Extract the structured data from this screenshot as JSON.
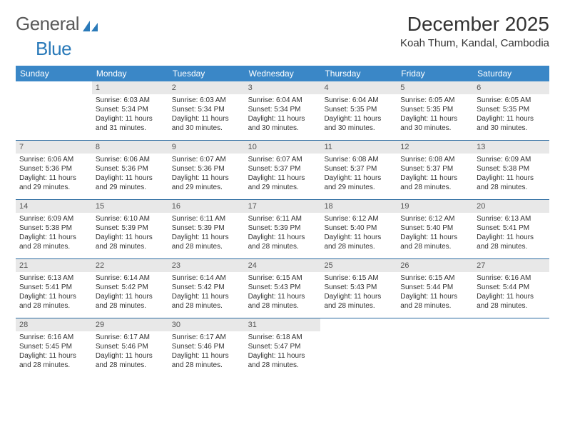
{
  "brand": {
    "name_a": "General",
    "name_b": "Blue"
  },
  "title": "December 2025",
  "location": "Koah Thum, Kandal, Cambodia",
  "colors": {
    "header_bg": "#3a87c7",
    "header_text": "#ffffff",
    "daynum_bg": "#e8e8e8",
    "week_divider": "#2a6aa0",
    "text": "#333333",
    "logo_gray": "#5a5a5a",
    "logo_blue": "#2a7ab9"
  },
  "day_names": [
    "Sunday",
    "Monday",
    "Tuesday",
    "Wednesday",
    "Thursday",
    "Friday",
    "Saturday"
  ],
  "weeks": [
    [
      {
        "n": "",
        "sr": "",
        "ss": "",
        "dl": ""
      },
      {
        "n": "1",
        "sr": "Sunrise: 6:03 AM",
        "ss": "Sunset: 5:34 PM",
        "dl": "Daylight: 11 hours and 31 minutes."
      },
      {
        "n": "2",
        "sr": "Sunrise: 6:03 AM",
        "ss": "Sunset: 5:34 PM",
        "dl": "Daylight: 11 hours and 30 minutes."
      },
      {
        "n": "3",
        "sr": "Sunrise: 6:04 AM",
        "ss": "Sunset: 5:34 PM",
        "dl": "Daylight: 11 hours and 30 minutes."
      },
      {
        "n": "4",
        "sr": "Sunrise: 6:04 AM",
        "ss": "Sunset: 5:35 PM",
        "dl": "Daylight: 11 hours and 30 minutes."
      },
      {
        "n": "5",
        "sr": "Sunrise: 6:05 AM",
        "ss": "Sunset: 5:35 PM",
        "dl": "Daylight: 11 hours and 30 minutes."
      },
      {
        "n": "6",
        "sr": "Sunrise: 6:05 AM",
        "ss": "Sunset: 5:35 PM",
        "dl": "Daylight: 11 hours and 30 minutes."
      }
    ],
    [
      {
        "n": "7",
        "sr": "Sunrise: 6:06 AM",
        "ss": "Sunset: 5:36 PM",
        "dl": "Daylight: 11 hours and 29 minutes."
      },
      {
        "n": "8",
        "sr": "Sunrise: 6:06 AM",
        "ss": "Sunset: 5:36 PM",
        "dl": "Daylight: 11 hours and 29 minutes."
      },
      {
        "n": "9",
        "sr": "Sunrise: 6:07 AM",
        "ss": "Sunset: 5:36 PM",
        "dl": "Daylight: 11 hours and 29 minutes."
      },
      {
        "n": "10",
        "sr": "Sunrise: 6:07 AM",
        "ss": "Sunset: 5:37 PM",
        "dl": "Daylight: 11 hours and 29 minutes."
      },
      {
        "n": "11",
        "sr": "Sunrise: 6:08 AM",
        "ss": "Sunset: 5:37 PM",
        "dl": "Daylight: 11 hours and 29 minutes."
      },
      {
        "n": "12",
        "sr": "Sunrise: 6:08 AM",
        "ss": "Sunset: 5:37 PM",
        "dl": "Daylight: 11 hours and 28 minutes."
      },
      {
        "n": "13",
        "sr": "Sunrise: 6:09 AM",
        "ss": "Sunset: 5:38 PM",
        "dl": "Daylight: 11 hours and 28 minutes."
      }
    ],
    [
      {
        "n": "14",
        "sr": "Sunrise: 6:09 AM",
        "ss": "Sunset: 5:38 PM",
        "dl": "Daylight: 11 hours and 28 minutes."
      },
      {
        "n": "15",
        "sr": "Sunrise: 6:10 AM",
        "ss": "Sunset: 5:39 PM",
        "dl": "Daylight: 11 hours and 28 minutes."
      },
      {
        "n": "16",
        "sr": "Sunrise: 6:11 AM",
        "ss": "Sunset: 5:39 PM",
        "dl": "Daylight: 11 hours and 28 minutes."
      },
      {
        "n": "17",
        "sr": "Sunrise: 6:11 AM",
        "ss": "Sunset: 5:39 PM",
        "dl": "Daylight: 11 hours and 28 minutes."
      },
      {
        "n": "18",
        "sr": "Sunrise: 6:12 AM",
        "ss": "Sunset: 5:40 PM",
        "dl": "Daylight: 11 hours and 28 minutes."
      },
      {
        "n": "19",
        "sr": "Sunrise: 6:12 AM",
        "ss": "Sunset: 5:40 PM",
        "dl": "Daylight: 11 hours and 28 minutes."
      },
      {
        "n": "20",
        "sr": "Sunrise: 6:13 AM",
        "ss": "Sunset: 5:41 PM",
        "dl": "Daylight: 11 hours and 28 minutes."
      }
    ],
    [
      {
        "n": "21",
        "sr": "Sunrise: 6:13 AM",
        "ss": "Sunset: 5:41 PM",
        "dl": "Daylight: 11 hours and 28 minutes."
      },
      {
        "n": "22",
        "sr": "Sunrise: 6:14 AM",
        "ss": "Sunset: 5:42 PM",
        "dl": "Daylight: 11 hours and 28 minutes."
      },
      {
        "n": "23",
        "sr": "Sunrise: 6:14 AM",
        "ss": "Sunset: 5:42 PM",
        "dl": "Daylight: 11 hours and 28 minutes."
      },
      {
        "n": "24",
        "sr": "Sunrise: 6:15 AM",
        "ss": "Sunset: 5:43 PM",
        "dl": "Daylight: 11 hours and 28 minutes."
      },
      {
        "n": "25",
        "sr": "Sunrise: 6:15 AM",
        "ss": "Sunset: 5:43 PM",
        "dl": "Daylight: 11 hours and 28 minutes."
      },
      {
        "n": "26",
        "sr": "Sunrise: 6:15 AM",
        "ss": "Sunset: 5:44 PM",
        "dl": "Daylight: 11 hours and 28 minutes."
      },
      {
        "n": "27",
        "sr": "Sunrise: 6:16 AM",
        "ss": "Sunset: 5:44 PM",
        "dl": "Daylight: 11 hours and 28 minutes."
      }
    ],
    [
      {
        "n": "28",
        "sr": "Sunrise: 6:16 AM",
        "ss": "Sunset: 5:45 PM",
        "dl": "Daylight: 11 hours and 28 minutes."
      },
      {
        "n": "29",
        "sr": "Sunrise: 6:17 AM",
        "ss": "Sunset: 5:46 PM",
        "dl": "Daylight: 11 hours and 28 minutes."
      },
      {
        "n": "30",
        "sr": "Sunrise: 6:17 AM",
        "ss": "Sunset: 5:46 PM",
        "dl": "Daylight: 11 hours and 28 minutes."
      },
      {
        "n": "31",
        "sr": "Sunrise: 6:18 AM",
        "ss": "Sunset: 5:47 PM",
        "dl": "Daylight: 11 hours and 28 minutes."
      },
      {
        "n": "",
        "sr": "",
        "ss": "",
        "dl": ""
      },
      {
        "n": "",
        "sr": "",
        "ss": "",
        "dl": ""
      },
      {
        "n": "",
        "sr": "",
        "ss": "",
        "dl": ""
      }
    ]
  ]
}
